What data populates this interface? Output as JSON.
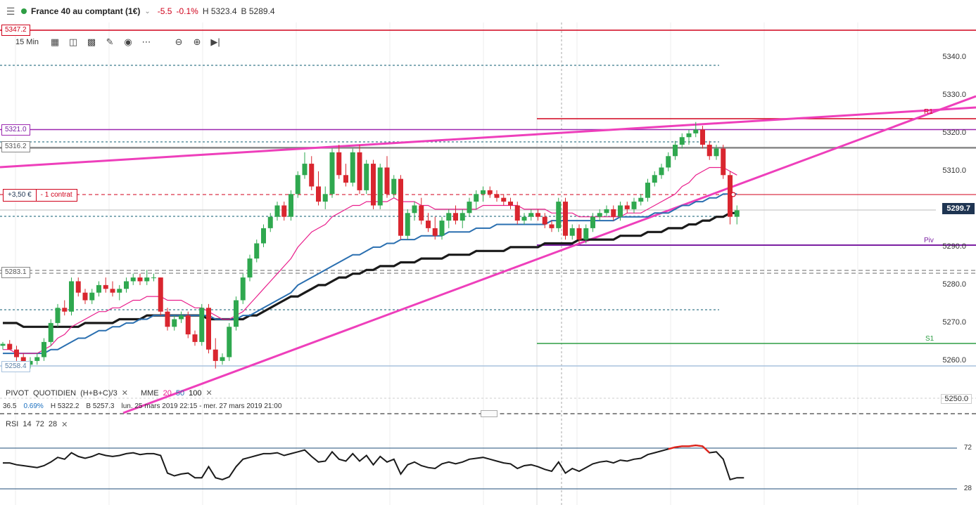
{
  "header": {
    "menu_icon": "hamburger-icon",
    "status_color": "#2e9e44",
    "instrument": "France 40 au comptant (1€)",
    "change": "-5.5",
    "change_pct": "-0.1%",
    "high": "H 5323.4",
    "bid": "B 5289.4"
  },
  "toolbar": {
    "timeframe": "15 Min",
    "icons": [
      "calendar-icon",
      "candle-type-icon",
      "bar-chart-icon",
      "pencil-icon",
      "eye-icon",
      "more-icon",
      "zoom-out-icon",
      "zoom-in-icon",
      "play-forward-icon"
    ]
  },
  "price_tags": {
    "top": "5347.2",
    "r_line": "5321.0",
    "gray": "5316.2",
    "low": "5283.1",
    "bottom": "5258.4"
  },
  "position": {
    "pl": "+3,50 €",
    "contracts": "- 1 contrat"
  },
  "current_price": "5299.7",
  "pivot_labels": {
    "r1": "R1",
    "piv": "Piv",
    "s1": "S1"
  },
  "indicators": {
    "pivot": [
      "PIVOT",
      "QUOTIDIEN",
      "(H+B+C)/3"
    ],
    "mme": [
      "MME",
      "20",
      "50",
      "100"
    ],
    "stats": {
      "a": "36.5",
      "b": "0.69%",
      "h": "H 5322.2",
      "l": "B 5257.3",
      "range": "lun. 25 mars 2019 22:15 - mer. 27 mars 2019 21:00"
    },
    "rsi": [
      "RSI",
      "14",
      "72",
      "28"
    ]
  },
  "chart_data": {
    "type": "candlestick",
    "y_axis": {
      "ticks": [
        5340,
        5330,
        5320,
        5310,
        5290,
        5280,
        5270,
        5260,
        5250
      ],
      "tick_labels": [
        "5340.0",
        "5330.0",
        "5320.0",
        "5310.0",
        "5290.0",
        "5280.0",
        "5270.0",
        "5260.0",
        "5250.0"
      ],
      "range": [
        5245,
        5350
      ]
    },
    "horizontal_levels": {
      "resistance_5347": 5347.2,
      "r1": 5324,
      "purple_5321": 5321,
      "gray_5316": 5316.2,
      "position_entry": 5303.5,
      "pivot": 5291,
      "support_5283": 5283.1,
      "s1": 5265,
      "low_5258": 5258.4
    },
    "candles": [
      [
        5264,
        5265,
        5263,
        5264.5
      ],
      [
        5264.5,
        5265.5,
        5263,
        5263
      ],
      [
        5263,
        5264,
        5260,
        5261
      ],
      [
        5261,
        5262,
        5258,
        5259
      ],
      [
        5259,
        5261,
        5258,
        5260
      ],
      [
        5260,
        5262,
        5259,
        5261
      ],
      [
        5261,
        5266,
        5260,
        5265
      ],
      [
        5265,
        5271,
        5264,
        5270
      ],
      [
        5270,
        5275,
        5269,
        5274
      ],
      [
        5274,
        5276,
        5272,
        5273
      ],
      [
        5273,
        5282,
        5272,
        5281
      ],
      [
        5281,
        5282,
        5277,
        5278
      ],
      [
        5278,
        5279,
        5275,
        5276
      ],
      [
        5276,
        5279,
        5275,
        5278
      ],
      [
        5278,
        5281,
        5277,
        5280
      ],
      [
        5280,
        5282,
        5278,
        5279
      ],
      [
        5279,
        5281,
        5277,
        5278
      ],
      [
        5278,
        5280,
        5276,
        5279
      ],
      [
        5279,
        5282,
        5278,
        5281
      ],
      [
        5281,
        5283,
        5280,
        5282
      ],
      [
        5282,
        5283,
        5280,
        5281
      ],
      [
        5281,
        5284,
        5280,
        5282
      ],
      [
        5282,
        5283,
        5281,
        5282
      ],
      [
        5282,
        5282,
        5272,
        5273
      ],
      [
        5273,
        5274,
        5268,
        5269
      ],
      [
        5269,
        5272,
        5268,
        5271
      ],
      [
        5271,
        5273,
        5270,
        5272
      ],
      [
        5272,
        5273,
        5266,
        5267
      ],
      [
        5267,
        5268,
        5264,
        5265
      ],
      [
        5265,
        5275,
        5264,
        5274
      ],
      [
        5274,
        5275,
        5262,
        5263
      ],
      [
        5263,
        5266,
        5258,
        5260
      ],
      [
        5260,
        5262,
        5259,
        5261
      ],
      [
        5261,
        5270,
        5260,
        5269
      ],
      [
        5269,
        5277,
        5268,
        5276
      ],
      [
        5276,
        5283,
        5275,
        5282
      ],
      [
        5282,
        5288,
        5281,
        5287
      ],
      [
        5287,
        5292,
        5286,
        5291
      ],
      [
        5291,
        5296,
        5290,
        5295
      ],
      [
        5295,
        5299,
        5294,
        5298
      ],
      [
        5298,
        5302,
        5297,
        5301
      ],
      [
        5301,
        5302,
        5297,
        5298
      ],
      [
        5298,
        5305,
        5297,
        5304
      ],
      [
        5304,
        5310,
        5303,
        5309
      ],
      [
        5309,
        5315,
        5308,
        5312
      ],
      [
        5312,
        5314,
        5305,
        5306
      ],
      [
        5306,
        5310,
        5301,
        5302
      ],
      [
        5302,
        5306,
        5300,
        5304
      ],
      [
        5304,
        5316,
        5303,
        5315
      ],
      [
        5315,
        5317,
        5308,
        5309
      ],
      [
        5309,
        5312,
        5306,
        5307
      ],
      [
        5307,
        5316,
        5306,
        5315
      ],
      [
        5315,
        5317,
        5304,
        5305
      ],
      [
        5305,
        5313,
        5304,
        5312
      ],
      [
        5312,
        5313,
        5300,
        5301
      ],
      [
        5301,
        5312,
        5300,
        5311
      ],
      [
        5311,
        5314,
        5303,
        5304
      ],
      [
        5304,
        5309,
        5303,
        5308
      ],
      [
        5308,
        5309,
        5292,
        5293
      ],
      [
        5293,
        5300,
        5292,
        5299
      ],
      [
        5299,
        5302,
        5297,
        5301
      ],
      [
        5301,
        5303,
        5296,
        5297
      ],
      [
        5297,
        5299,
        5294,
        5295
      ],
      [
        5295,
        5298,
        5292,
        5293
      ],
      [
        5293,
        5298,
        5292,
        5297
      ],
      [
        5297,
        5300,
        5295,
        5299
      ],
      [
        5299,
        5301,
        5296,
        5297
      ],
      [
        5297,
        5300,
        5295,
        5299
      ],
      [
        5299,
        5303,
        5298,
        5302
      ],
      [
        5302,
        5305,
        5300,
        5304
      ],
      [
        5304,
        5306,
        5302,
        5305
      ],
      [
        5305,
        5306,
        5303,
        5304
      ],
      [
        5304,
        5305,
        5302,
        5303
      ],
      [
        5303,
        5304,
        5301,
        5302
      ],
      [
        5302,
        5303,
        5300,
        5301
      ],
      [
        5301,
        5302,
        5296,
        5297
      ],
      [
        5297,
        5299,
        5296,
        5298
      ],
      [
        5298,
        5300,
        5297,
        5299
      ],
      [
        5299,
        5300,
        5297,
        5298
      ],
      [
        5298,
        5299,
        5295,
        5296
      ],
      [
        5296,
        5297,
        5294,
        5295
      ],
      [
        5295,
        5303,
        5294,
        5302
      ],
      [
        5302,
        5303,
        5292,
        5293
      ],
      [
        5293,
        5296,
        5292,
        5295
      ],
      [
        5295,
        5296,
        5291,
        5292
      ],
      [
        5292,
        5296,
        5291,
        5295
      ],
      [
        5295,
        5299,
        5294,
        5298
      ],
      [
        5298,
        5300,
        5297,
        5299
      ],
      [
        5299,
        5301,
        5298,
        5300
      ],
      [
        5300,
        5301,
        5297,
        5298
      ],
      [
        5298,
        5302,
        5297,
        5301
      ],
      [
        5301,
        5302,
        5299,
        5300
      ],
      [
        5300,
        5303,
        5299,
        5302
      ],
      [
        5302,
        5304,
        5301,
        5303
      ],
      [
        5303,
        5308,
        5302,
        5307
      ],
      [
        5307,
        5310,
        5306,
        5309
      ],
      [
        5309,
        5312,
        5308,
        5311
      ],
      [
        5311,
        5315,
        5310,
        5314
      ],
      [
        5314,
        5318,
        5313,
        5317
      ],
      [
        5317,
        5320,
        5316,
        5319
      ],
      [
        5319,
        5321,
        5317,
        5320
      ],
      [
        5320,
        5323,
        5319,
        5321
      ],
      [
        5321,
        5322,
        5316,
        5317
      ],
      [
        5317,
        5318,
        5313,
        5314
      ],
      [
        5314,
        5317,
        5313,
        5316
      ],
      [
        5316,
        5317,
        5308,
        5309
      ],
      [
        5309,
        5310,
        5296,
        5298
      ],
      [
        5298,
        5301,
        5296,
        5299.7
      ]
    ],
    "ema_20": [
      5263,
      5263,
      5262,
      5262,
      5262,
      5262,
      5263,
      5264,
      5266,
      5267,
      5269,
      5270,
      5271,
      5272,
      5273,
      5273,
      5274,
      5274,
      5275,
      5276,
      5276,
      5277,
      5277,
      5277,
      5276,
      5276,
      5276,
      5275,
      5274,
      5274,
      5273,
      5272,
      5271,
      5271,
      5272,
      5273,
      5275,
      5277,
      5279,
      5281,
      5283,
      5285,
      5287,
      5290,
      5292,
      5294,
      5295,
      5296,
      5298,
      5299,
      5300,
      5301,
      5301,
      5302,
      5302,
      5302,
      5302,
      5303,
      5302,
      5302,
      5302,
      5301,
      5301,
      5300,
      5300,
      5300,
      5300,
      5300,
      5300,
      5300,
      5301,
      5301,
      5301,
      5301,
      5301,
      5301,
      5300,
      5300,
      5300,
      5300,
      5299,
      5299,
      5299,
      5299,
      5298,
      5298,
      5298,
      5298,
      5298,
      5298,
      5298,
      5299,
      5299,
      5299,
      5300,
      5301,
      5302,
      5303,
      5304,
      5306,
      5307,
      5309,
      5310,
      5311,
      5311,
      5311,
      5310,
      5309
    ],
    "ema_50": [
      5262,
      5262,
      5262,
      5262,
      5262,
      5262,
      5262,
      5263,
      5263,
      5264,
      5265,
      5266,
      5266,
      5267,
      5268,
      5268,
      5269,
      5269,
      5270,
      5270,
      5271,
      5271,
      5272,
      5272,
      5272,
      5272,
      5272,
      5272,
      5272,
      5272,
      5272,
      5271,
      5271,
      5271,
      5271,
      5272,
      5272,
      5273,
      5274,
      5275,
      5276,
      5277,
      5278,
      5280,
      5281,
      5282,
      5283,
      5284,
      5285,
      5286,
      5287,
      5288,
      5288,
      5289,
      5290,
      5290,
      5291,
      5291,
      5292,
      5292,
      5292,
      5293,
      5293,
      5293,
      5293,
      5294,
      5294,
      5294,
      5294,
      5295,
      5295,
      5295,
      5296,
      5296,
      5296,
      5296,
      5296,
      5296,
      5296,
      5296,
      5297,
      5297,
      5297,
      5297,
      5297,
      5297,
      5297,
      5297,
      5297,
      5297,
      5298,
      5298,
      5298,
      5298,
      5298,
      5299,
      5299,
      5299,
      5300,
      5301,
      5301,
      5302,
      5302,
      5303,
      5303,
      5304,
      5304,
      5304
    ],
    "ema_100": [
      5270,
      5270,
      5270,
      5269,
      5269,
      5269,
      5269,
      5269,
      5269,
      5269,
      5269,
      5269,
      5270,
      5270,
      5270,
      5270,
      5270,
      5271,
      5271,
      5271,
      5271,
      5272,
      5272,
      5272,
      5272,
      5272,
      5272,
      5272,
      5272,
      5272,
      5271,
      5271,
      5271,
      5271,
      5271,
      5271,
      5272,
      5272,
      5273,
      5274,
      5275,
      5276,
      5277,
      5277,
      5278,
      5279,
      5280,
      5280,
      5281,
      5282,
      5282,
      5283,
      5283,
      5284,
      5284,
      5285,
      5285,
      5285,
      5286,
      5286,
      5286,
      5287,
      5287,
      5287,
      5287,
      5288,
      5288,
      5288,
      5288,
      5289,
      5289,
      5289,
      5289,
      5289,
      5290,
      5290,
      5290,
      5290,
      5290,
      5291,
      5291,
      5291,
      5291,
      5291,
      5292,
      5292,
      5292,
      5292,
      5292,
      5292,
      5293,
      5293,
      5293,
      5293,
      5294,
      5294,
      5294,
      5295,
      5295,
      5295,
      5296,
      5296,
      5297,
      5297,
      5298,
      5298,
      5299,
      5299
    ],
    "rsi": {
      "levels": [
        72,
        28
      ],
      "level_labels": [
        "72",
        "28"
      ],
      "values": [
        56,
        56,
        54,
        53,
        52,
        51,
        53,
        57,
        62,
        60,
        67,
        63,
        61,
        63,
        66,
        64,
        63,
        64,
        66,
        67,
        65,
        66,
        66,
        64,
        45,
        42,
        44,
        45,
        40,
        40,
        52,
        40,
        38,
        41,
        52,
        60,
        62,
        64,
        66,
        66,
        67,
        64,
        66,
        68,
        70,
        63,
        57,
        58,
        68,
        60,
        58,
        66,
        58,
        64,
        54,
        63,
        57,
        60,
        44,
        54,
        57,
        53,
        51,
        50,
        55,
        57,
        55,
        57,
        60,
        61,
        62,
        60,
        58,
        56,
        55,
        50,
        53,
        54,
        52,
        49,
        47,
        57,
        45,
        50,
        47,
        51,
        55,
        57,
        58,
        56,
        59,
        58,
        60,
        61,
        65,
        67,
        69,
        71,
        73,
        74,
        74,
        75,
        74,
        67,
        68,
        60,
        38,
        40
      ]
    }
  }
}
